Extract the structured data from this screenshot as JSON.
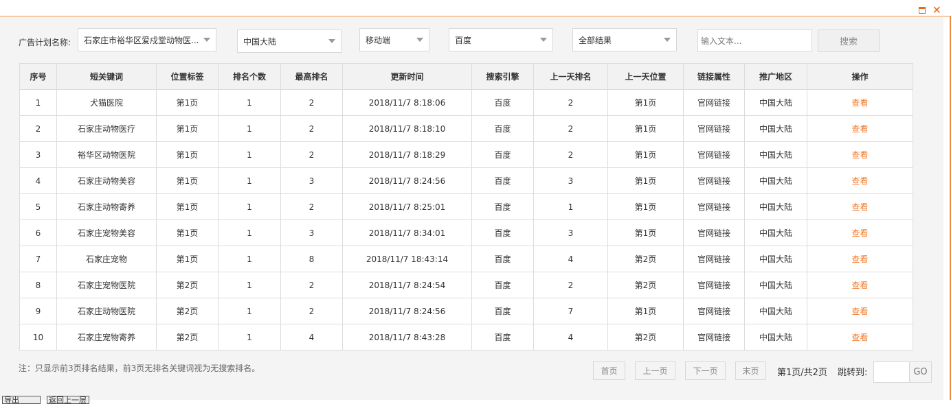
{
  "window": {
    "restore_icon": "restore-icon",
    "close_icon": "close-icon",
    "accent": "#f08a3c"
  },
  "filters": {
    "plan_label": "广告计划名称:",
    "plan": "石家庄市裕华区爱戍堂动物医...",
    "region": "中国大陆",
    "device": "移动端",
    "engine": "百度",
    "result": "全部结果",
    "search_placeholder": "输入文本...",
    "search_button": "搜索"
  },
  "table": {
    "headers": [
      "序号",
      "短关键词",
      "位置标签",
      "排名个数",
      "最高排名",
      "更新时间",
      "搜索引擎",
      "上一天排名",
      "上一天位置",
      "链接属性",
      "推广地区",
      "操作"
    ],
    "rows": [
      [
        "1",
        "犬猫医院",
        "第1页",
        "1",
        "2",
        "2018/11/7 8:18:06",
        "百度",
        "2",
        "第1页",
        "官网链接",
        "中国大陆",
        "查看"
      ],
      [
        "2",
        "石家庄动物医疗",
        "第1页",
        "1",
        "2",
        "2018/11/7 8:18:10",
        "百度",
        "2",
        "第1页",
        "官网链接",
        "中国大陆",
        "查看"
      ],
      [
        "3",
        "裕华区动物医院",
        "第1页",
        "1",
        "2",
        "2018/11/7 8:18:29",
        "百度",
        "2",
        "第1页",
        "官网链接",
        "中国大陆",
        "查看"
      ],
      [
        "4",
        "石家庄动物美容",
        "第1页",
        "1",
        "3",
        "2018/11/7 8:24:56",
        "百度",
        "3",
        "第1页",
        "官网链接",
        "中国大陆",
        "查看"
      ],
      [
        "5",
        "石家庄动物寄养",
        "第1页",
        "1",
        "2",
        "2018/11/7 8:25:01",
        "百度",
        "1",
        "第1页",
        "官网链接",
        "中国大陆",
        "查看"
      ],
      [
        "6",
        "石家庄宠物美容",
        "第1页",
        "1",
        "3",
        "2018/11/7 8:34:01",
        "百度",
        "3",
        "第1页",
        "官网链接",
        "中国大陆",
        "查看"
      ],
      [
        "7",
        "石家庄宠物",
        "第1页",
        "1",
        "8",
        "2018/11/7 18:43:14",
        "百度",
        "4",
        "第2页",
        "官网链接",
        "中国大陆",
        "查看"
      ],
      [
        "8",
        "石家庄宠物医院",
        "第2页",
        "1",
        "2",
        "2018/11/7 8:24:54",
        "百度",
        "2",
        "第2页",
        "官网链接",
        "中国大陆",
        "查看"
      ],
      [
        "9",
        "石家庄动物医院",
        "第2页",
        "1",
        "2",
        "2018/11/7 8:24:56",
        "百度",
        "7",
        "第1页",
        "官网链接",
        "中国大陆",
        "查看"
      ],
      [
        "10",
        "石家庄宠物寄养",
        "第2页",
        "1",
        "4",
        "2018/11/7 8:43:28",
        "百度",
        "4",
        "第2页",
        "官网链接",
        "中国大陆",
        "查看"
      ]
    ]
  },
  "footer": {
    "note": "注：只显示前3页排名结果，前3页无排名关键词视为无搜索排名。",
    "first": "首页",
    "prev": "上一页",
    "next": "下一页",
    "last": "末页",
    "page_info": "第1页/共2页",
    "jump_label": "跳转到:",
    "jump_value": "",
    "go": "GO",
    "export": "导出Excel",
    "back": "返回上一层"
  }
}
